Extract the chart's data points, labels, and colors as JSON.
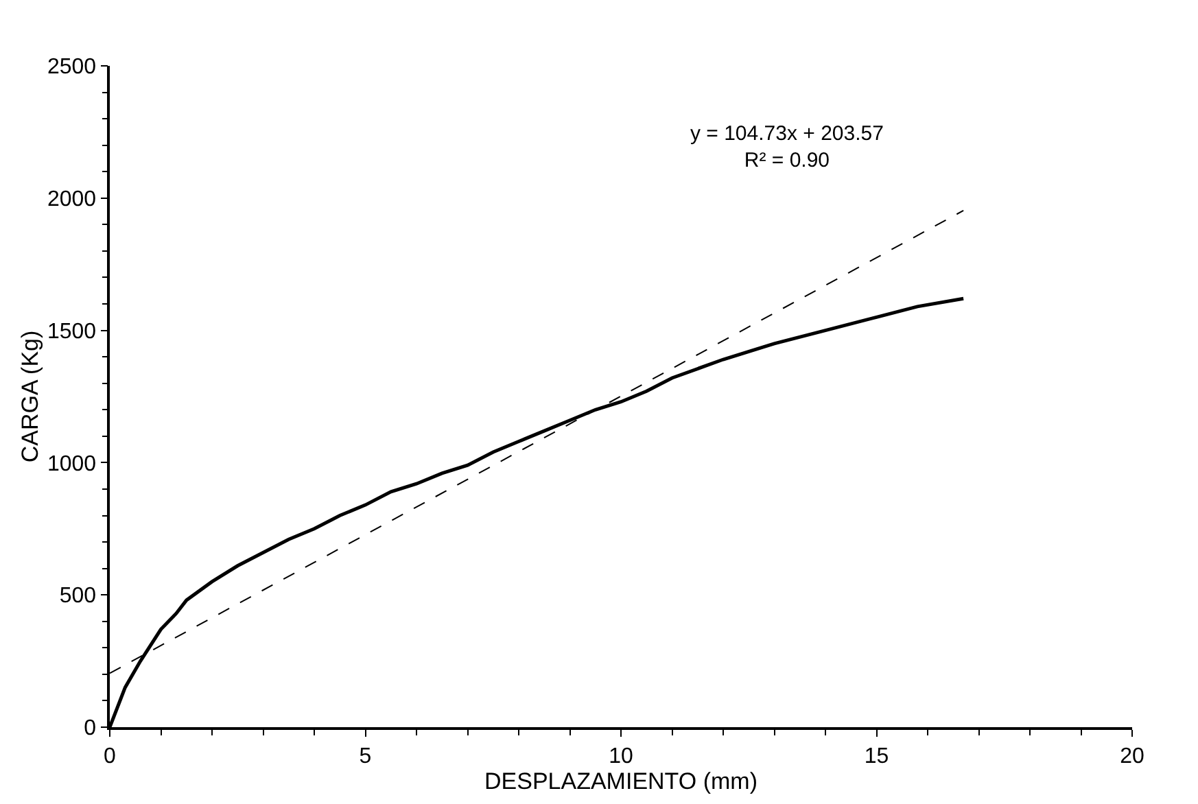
{
  "chart_data": {
    "type": "line",
    "xlabel": "DESPLAZAMIENTO (mm)",
    "ylabel": "CARGA (Kg)",
    "xlim": [
      0,
      20
    ],
    "xticks": [
      0,
      5,
      10,
      15,
      20
    ],
    "ylim": [
      0,
      2500
    ],
    "yticks": [
      0,
      500,
      1000,
      1500,
      2000,
      2500
    ],
    "marker": "none",
    "series": [
      {
        "color": "#000000",
        "line_style": "solid",
        "x": [
          0,
          0.3,
          0.6,
          1,
          1.3,
          1.5,
          2,
          2.5,
          3,
          3.5,
          4,
          4.3,
          4.5,
          5,
          5.5,
          6,
          6.5,
          7,
          7.5,
          8,
          8.5,
          9,
          9.5,
          10,
          10.5,
          11,
          12,
          13,
          14,
          15,
          15.8,
          16.7
        ],
        "values": [
          0,
          150,
          250,
          370,
          430,
          480,
          550,
          610,
          660,
          710,
          750,
          780,
          800,
          840,
          890,
          920,
          960,
          990,
          1040,
          1080,
          1120,
          1160,
          1200,
          1230,
          1270,
          1320,
          1390,
          1450,
          1500,
          1550,
          1590,
          1620
        ]
      },
      {
        "color": "#000000",
        "line_style": "dashed",
        "x": [
          0,
          16.7
        ],
        "values": [
          204,
          1953
        ]
      }
    ],
    "annotations": [
      "y = 104.73x + 203.57\nR² = 0.90"
    ]
  }
}
